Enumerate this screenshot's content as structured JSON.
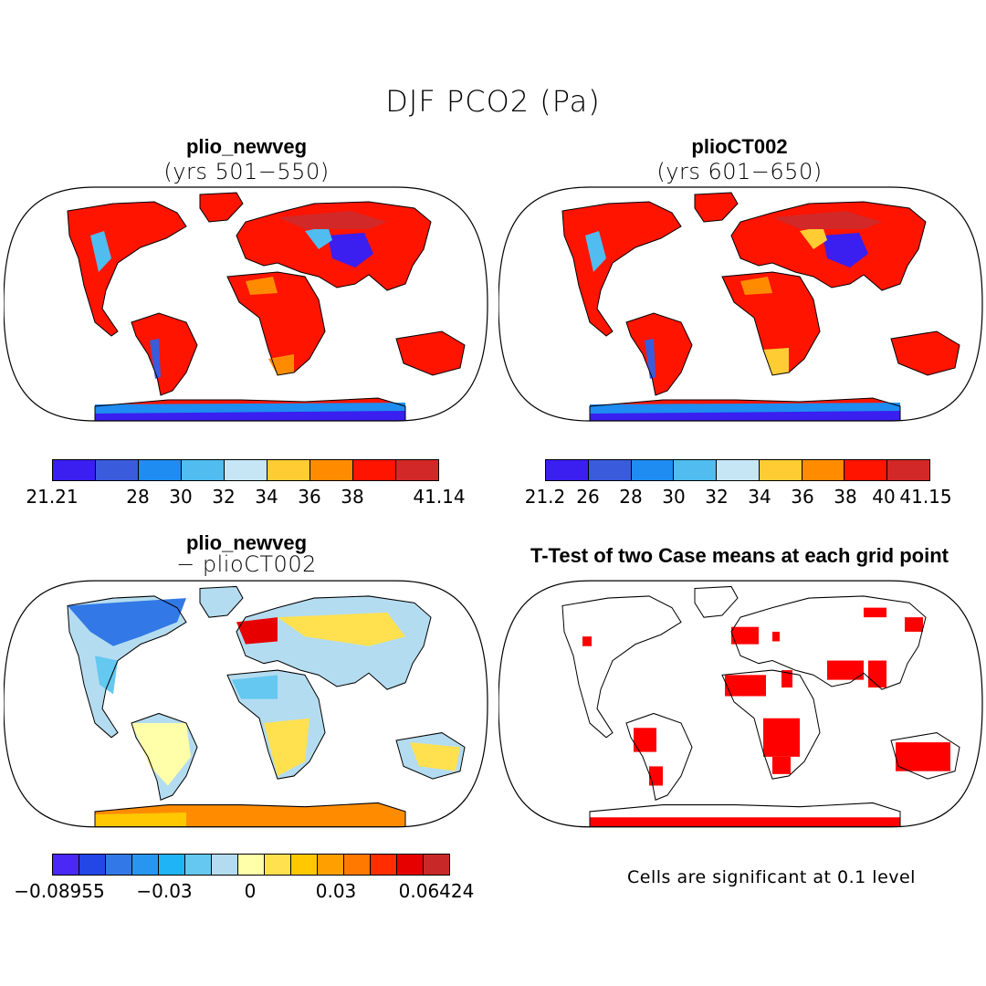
{
  "figure": {
    "title": "DJF PCO2 (Pa)",
    "significance_note": "Cells are significant at 0.1 level"
  },
  "panels": {
    "p1": {
      "title": "plio_newveg",
      "subtitle": "(yrs 501−550)"
    },
    "p2": {
      "title": "plioCT002",
      "subtitle": "(yrs 601−650)"
    },
    "p3": {
      "title": "plio_newveg",
      "subtitle": "− plioCT002"
    },
    "p4": {
      "title": "T-Test of two Case means at each grid point"
    }
  },
  "colorbars": {
    "cb1": {
      "colors": [
        "#3a1ff0",
        "#3a5bdc",
        "#1e8cf0",
        "#50bcf0",
        "#c6e6f6",
        "#ffcc33",
        "#ff8c00",
        "#ff1400",
        "#d22828"
      ],
      "labels": [
        "21.21",
        "28",
        "30",
        "32",
        "34",
        "36",
        "38",
        "41.14"
      ]
    },
    "cb2": {
      "colors": [
        "#3a1ff0",
        "#3a5bdc",
        "#1e8cf0",
        "#50bcf0",
        "#c6e6f6",
        "#ffcc33",
        "#ff8c00",
        "#ff1400",
        "#d22828"
      ],
      "labels": [
        "21.2",
        "26",
        "28",
        "30",
        "32",
        "34",
        "36",
        "38",
        "40",
        "41.15"
      ]
    },
    "cb3": {
      "colors": [
        "#4b28f5",
        "#2346e6",
        "#3278e6",
        "#2896f0",
        "#1eb4f5",
        "#64c8f0",
        "#b4dcf0",
        "#ffffaa",
        "#ffe150",
        "#ffc800",
        "#ffa000",
        "#ff7800",
        "#ff2d00",
        "#e60000",
        "#c82828"
      ],
      "labels": [
        "−0.08955",
        "−0.03",
        "0",
        "0.03",
        "0.06424"
      ]
    }
  },
  "colors": {
    "land_high": "#ff1400",
    "land_max": "#d22828",
    "sig": "#ff0000"
  }
}
